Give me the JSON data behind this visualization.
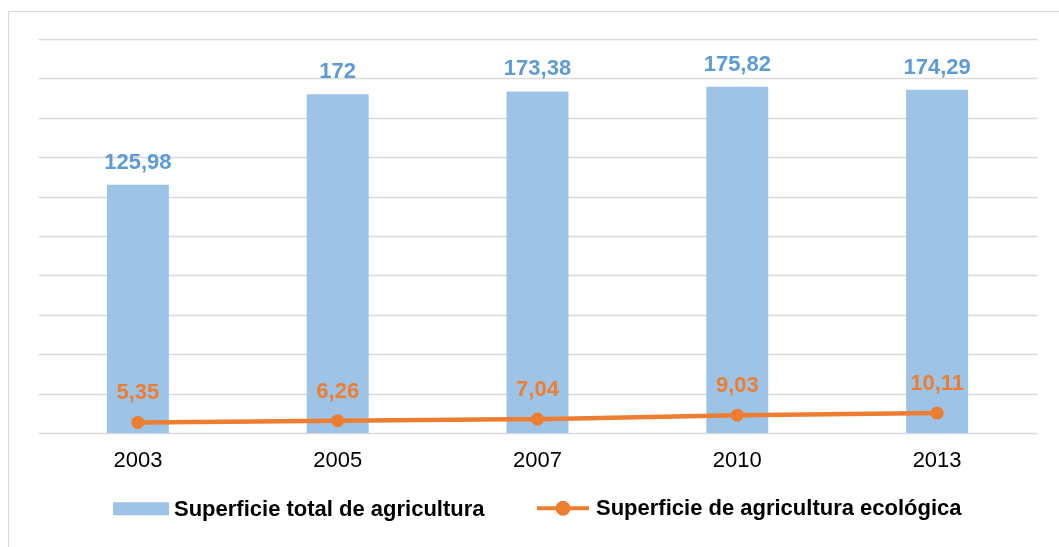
{
  "chart_data": {
    "type": "bar",
    "categories": [
      "2003",
      "2005",
      "2007",
      "2010",
      "2013"
    ],
    "series": [
      {
        "name": "Superficie total de agricultura",
        "color": "#9dc3e6",
        "values": [
          125.98,
          172,
          173.38,
          175.82,
          174.29
        ],
        "value_labels": [
          "125,98",
          "172",
          "173,38",
          "175,82",
          "174,29"
        ]
      },
      {
        "name": "Superficie de agricultura ecológica",
        "type": "line",
        "color": "#ed7d31",
        "values": [
          5.35,
          6.26,
          7.04,
          9.03,
          10.11
        ],
        "value_labels": [
          "5,35",
          "6,26",
          "7,04",
          "9,03",
          "10,11"
        ]
      }
    ],
    "ylim": [
      0,
      200
    ],
    "yticks": [
      0,
      20,
      40,
      60,
      80,
      100,
      120,
      140,
      160,
      180,
      200
    ],
    "grid": "y",
    "legend": "bottom",
    "tick_labels": "x",
    "marker": "circle",
    "line_style": "solid"
  }
}
